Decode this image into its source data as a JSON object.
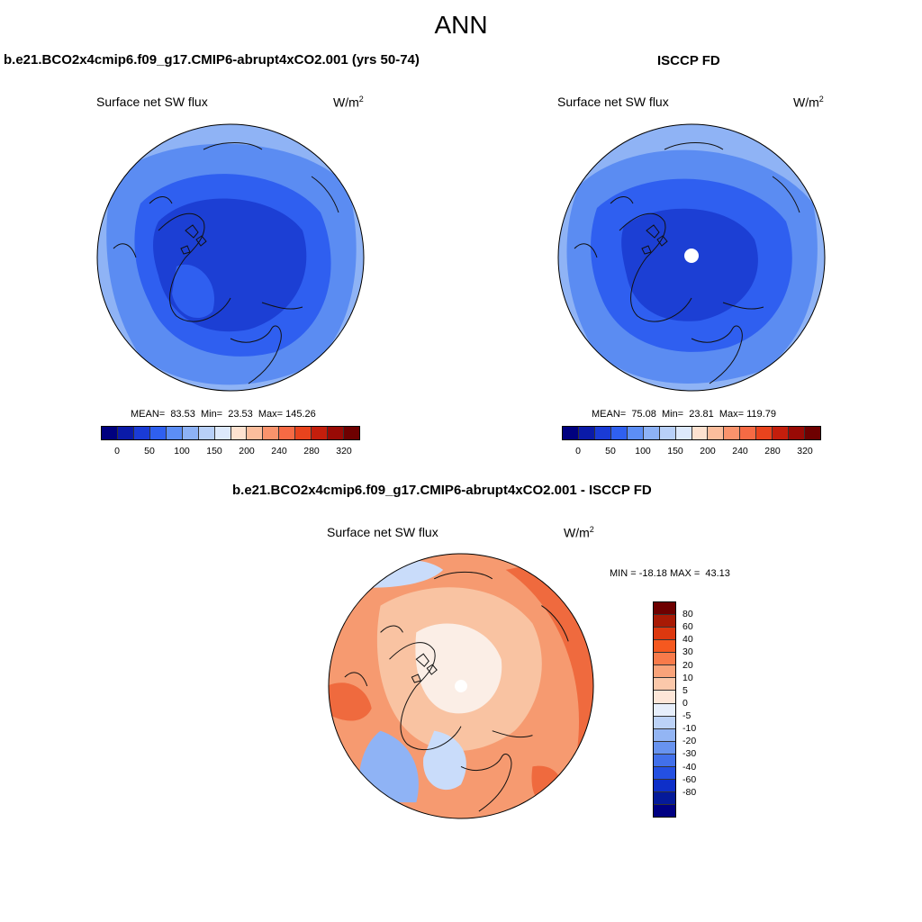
{
  "main_title": "ANN",
  "panels": [
    {
      "title": "b.e21.BCO2x4cmip6.f09_g17.CMIP6-abrupt4xCO2.001 (yrs 50-74)",
      "variable": "Surface net SW flux",
      "units": "W/m",
      "units_sup": "2",
      "stats": "MEAN=  83.53  Min=  23.53  Max= 145.26"
    },
    {
      "title": "ISCCP FD",
      "variable": "Surface net SW flux",
      "units": "W/m",
      "units_sup": "2",
      "stats": "MEAN=  75.08  Min=  23.81  Max= 119.79"
    },
    {
      "title": "b.e21.BCO2x4cmip6.f09_g17.CMIP6-abrupt4xCO2.001 - ISCCP FD",
      "variable": "Surface net SW flux",
      "units": "W/m",
      "units_sup": "2",
      "stats": "MIN = -18.18 MAX =  43.13"
    }
  ],
  "abs_colorbar": {
    "colors": [
      "#00007f",
      "#0a1aa8",
      "#1a3bd6",
      "#2f60f0",
      "#5c8ef5",
      "#8db2f6",
      "#b8d0f8",
      "#dde9fb",
      "#fde2d0",
      "#fbbd9c",
      "#f9936c",
      "#f66a44",
      "#e8431d",
      "#c41e0c",
      "#990a05",
      "#6e0000"
    ],
    "labels": [
      "0",
      "50",
      "100",
      "150",
      "200",
      "240",
      "280",
      "320"
    ]
  },
  "diff_colorbar": {
    "colors": [
      "#6e0000",
      "#a81a05",
      "#dd380f",
      "#f5581f",
      "#f87a4a",
      "#f9a37a",
      "#fbc8aa",
      "#fde6d8",
      "#e6eefb",
      "#bcd2f7",
      "#93b5f4",
      "#6893ef",
      "#4270ea",
      "#2450e2",
      "#0e2fc8",
      "#051a99",
      "#000082"
    ],
    "labels": [
      "80",
      "60",
      "40",
      "30",
      "20",
      "10",
      "5",
      "0",
      "-5",
      "-10",
      "-20",
      "-30",
      "-40",
      "-60",
      "-80"
    ]
  },
  "map_colors": {
    "deep_blue": "#1c3fd4",
    "mid_blue": "#2f5ff0",
    "light_blue": "#5b8cf2",
    "pale_blue": "#8fb3f5",
    "ice_blue": "#c9dcfa",
    "white": "#fbeee6",
    "light_orange": "#f9c3a2",
    "orange": "#f69a70",
    "red_orange": "#ef6a3e",
    "coast": "#111111"
  }
}
